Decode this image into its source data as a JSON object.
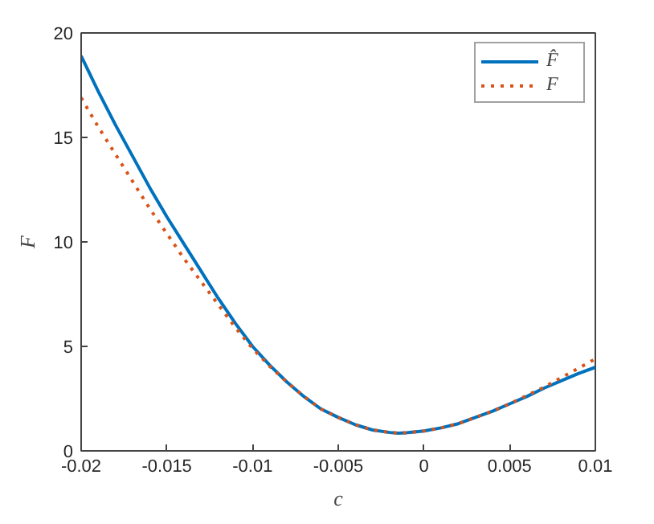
{
  "chart_data": {
    "type": "line",
    "xlabel": "c",
    "ylabel": "F",
    "xlim": [
      -0.02,
      0.01
    ],
    "ylim": [
      0,
      20
    ],
    "xticks": [
      -0.02,
      -0.015,
      -0.01,
      -0.005,
      0,
      0.005,
      0.01
    ],
    "yticks": [
      0,
      5,
      10,
      15,
      20
    ],
    "grid": false,
    "legend": "top right",
    "series": [
      {
        "name": "F̂",
        "color": "#0072bd",
        "line_style": "solid",
        "x": [
          -0.02,
          -0.019,
          -0.018,
          -0.017,
          -0.016,
          -0.015,
          -0.014,
          -0.013,
          -0.012,
          -0.011,
          -0.01,
          -0.009,
          -0.008,
          -0.007,
          -0.006,
          -0.005,
          -0.004,
          -0.003,
          -0.002,
          -0.0015,
          -0.001,
          0,
          0.001,
          0.002,
          0.003,
          0.004,
          0.005,
          0.006,
          0.007,
          0.008,
          0.009,
          0.01
        ],
        "values": [
          18.9,
          17.2,
          15.6,
          14.1,
          12.6,
          11.2,
          9.9,
          8.6,
          7.3,
          6.1,
          5.0,
          4.1,
          3.3,
          2.6,
          2.0,
          1.6,
          1.25,
          1.0,
          0.88,
          0.85,
          0.87,
          0.95,
          1.1,
          1.3,
          1.6,
          1.9,
          2.25,
          2.6,
          3.0,
          3.35,
          3.7,
          4.0
        ]
      },
      {
        "name": "F",
        "color": "#d95319",
        "line_style": "dotted",
        "x": [
          -0.02,
          -0.019,
          -0.018,
          -0.017,
          -0.016,
          -0.015,
          -0.014,
          -0.013,
          -0.012,
          -0.011,
          -0.01,
          -0.009,
          -0.008,
          -0.007,
          -0.006,
          -0.005,
          -0.004,
          -0.003,
          -0.002,
          -0.0015,
          -0.001,
          0,
          0.001,
          0.002,
          0.003,
          0.004,
          0.005,
          0.006,
          0.007,
          0.008,
          0.009,
          0.01
        ],
        "values": [
          16.9,
          15.5,
          14.2,
          12.9,
          11.6,
          10.4,
          9.2,
          8.1,
          7.0,
          5.9,
          4.9,
          4.05,
          3.3,
          2.6,
          2.0,
          1.6,
          1.25,
          1.0,
          0.88,
          0.85,
          0.87,
          0.95,
          1.1,
          1.3,
          1.6,
          1.9,
          2.25,
          2.65,
          3.05,
          3.5,
          3.95,
          4.4
        ]
      }
    ]
  }
}
